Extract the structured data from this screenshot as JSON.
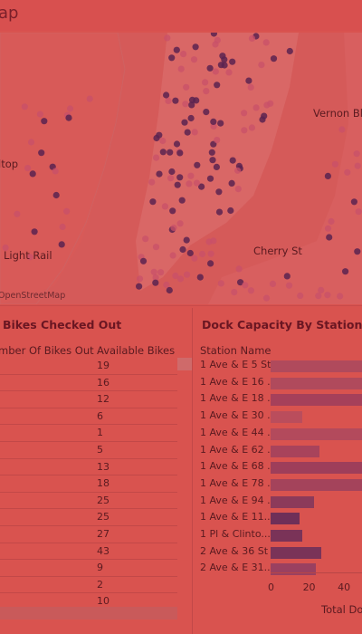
{
  "header": {
    "title_fragment": "ap"
  },
  "map": {
    "labels": [
      "Vernon Blv",
      "ltop",
      "Light Rail",
      "Cherry St"
    ],
    "attribution": "OpenStreetMap"
  },
  "bikes_panel": {
    "title": "Bikes Checked Out",
    "col_bikes_out": "mber Of Bikes Out",
    "col_available": "Available Bikes",
    "available": [
      "19",
      "16",
      "12",
      "6",
      "1",
      "5",
      "13",
      "18",
      "25",
      "25",
      "27",
      "43",
      "9",
      "2",
      "10"
    ]
  },
  "dock_panel": {
    "title": "Dock Capacity By Station",
    "col_station": "Station Name",
    "stations": [
      "1 Ave & E 5 St",
      "1 Ave & E 16 ...",
      "1 Ave & E 18 ...",
      "1 Ave & E 30 ...",
      "1 Ave & E 44 ...",
      "1 Ave & E 62 ...",
      "1 Ave & E 68 ...",
      "1 Ave & E 78 ...",
      "1 Ave & E 94 ...",
      "1 Ave & E 11...",
      "1 Pl & Clinto...",
      "2 Ave & 36 St",
      "2 Ave & E 31..."
    ],
    "axis_ticks": [
      "0",
      "20",
      "40"
    ],
    "axis_title": "Total Doc"
  },
  "chart_data": {
    "type": "bar",
    "categories": [
      "1 Ave & E 5 St",
      "1 Ave & E 16 ...",
      "1 Ave & E 18 ...",
      "1 Ave & E 30 ...",
      "1 Ave & E 44 ...",
      "1 Ave & E 62 ...",
      "1 Ave & E 68 ...",
      "1 Ave & E 78 ...",
      "1 Ave & E 94 ...",
      "1 Ave & E 11...",
      "1 Pl & Clinto...",
      "2 Ave & 36 St",
      "2 Ave & E 31..."
    ],
    "values": [
      55,
      55,
      55,
      19,
      55,
      29,
      55,
      55,
      26,
      17,
      19,
      30,
      27
    ],
    "xlim": [
      0,
      55
    ],
    "colors": [
      "#b04a5c",
      "#b04a5c",
      "#a6405a",
      "#ba4d5c",
      "#b34a5c",
      "#a8435b",
      "#9e3e5a",
      "#a4435b",
      "#8c3a5a",
      "#6f2f58",
      "#7a3358",
      "#7a3358",
      "#9a4060"
    ]
  },
  "colors": {
    "background": "#d9534f",
    "map_dot_dark": "#5a2350",
    "map_dot_light": "#c8506a"
  }
}
